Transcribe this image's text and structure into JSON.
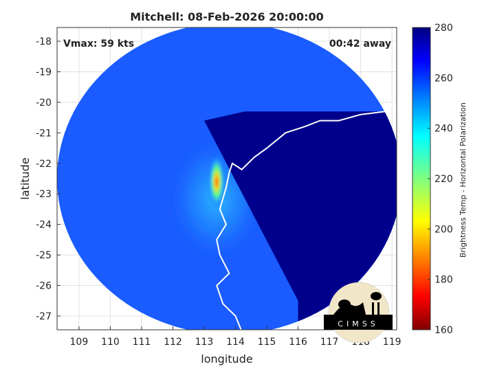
{
  "chart_data": {
    "type": "heatmap",
    "title": "Mitchell: 08-Feb-2026 20:00:00",
    "xlabel": "longitude",
    "ylabel": "latitude",
    "xlim": [
      108.3,
      119.15
    ],
    "ylim": [
      -27.45,
      -17.55
    ],
    "x_ticks": [
      109,
      110,
      111,
      112,
      113,
      114,
      115,
      116,
      117,
      118,
      119
    ],
    "y_ticks": [
      -18,
      -19,
      -20,
      -21,
      -22,
      -23,
      -24,
      -25,
      -26,
      -27
    ],
    "grid": true,
    "annotations": {
      "vmax": "Vmax: 59 kts",
      "time_away": "00:42 away"
    },
    "colorbar": {
      "label": "Brightness Temp - Horizontal Polarization",
      "range": [
        160,
        280
      ],
      "ticks": [
        280,
        260,
        240,
        220,
        200,
        180,
        160
      ],
      "colormap": "jet"
    },
    "swath": {
      "center": [
        113.8,
        -22.5
      ],
      "radius_lon": 5.5,
      "radius_lat": 5.1,
      "land_boundary_edge": [
        [
          113.0,
          -20.6
        ],
        [
          114.3,
          -20.3
        ],
        [
          116.0,
          -26.5
        ]
      ]
    },
    "storm": {
      "center": [
        113.4,
        -22.6
      ],
      "core_temp_min": 175
    },
    "background_temp": 250,
    "land_temp": 280,
    "logo_text": "CIMSS",
    "colors": {
      "text": "#222222",
      "grid": "#e0e0e0",
      "coastline": "#ffffff"
    }
  }
}
